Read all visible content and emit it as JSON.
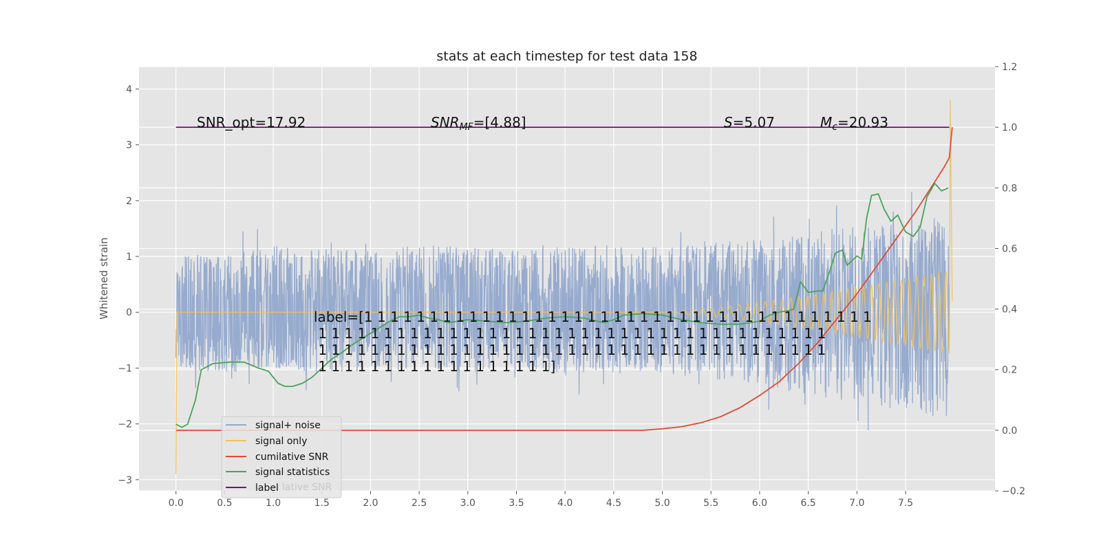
{
  "chart_data": {
    "type": "line",
    "title": "stats at each timestep for test data 158",
    "ylabel": "Whitened strain",
    "xlim": [
      -0.38,
      8.42
    ],
    "ylim": [
      -3.2,
      4.4
    ],
    "y2lim": [
      -0.2,
      1.2
    ],
    "x_ticks": [
      0.0,
      0.5,
      1.0,
      1.5,
      2.0,
      2.5,
      3.0,
      3.5,
      4.0,
      4.5,
      5.0,
      5.5,
      6.0,
      6.5,
      7.0,
      7.5
    ],
    "x_tick_labels": [
      "0.0",
      "0.5",
      "1.0",
      "1.5",
      "2.0",
      "2.5",
      "3.0",
      "3.5",
      "4.0",
      "4.5",
      "5.0",
      "5.5",
      "6.0",
      "6.5",
      "7.0",
      "7.5"
    ],
    "y_ticks": [
      4,
      3,
      2,
      1,
      0,
      -1,
      -2,
      -3
    ],
    "y_tick_labels": [
      "4",
      "3",
      "2",
      "1",
      "0",
      "−1",
      "−2",
      "−3"
    ],
    "y2_ticks": [
      1.2,
      1.0,
      0.8,
      0.6,
      0.4,
      0.2,
      0.0,
      -0.2
    ],
    "y2_tick_labels": [
      "1.2",
      "1.0",
      "0.8",
      "0.6",
      "0.4",
      "0.2",
      "0.0",
      "−0.2"
    ],
    "grid": true,
    "legend_position": "lower-left",
    "annotations": {
      "snr_opt": "SNR_opt=17.92",
      "snr_mf": "SNR",
      "snr_mf_sub": "MF",
      "snr_mf_val": "=[4.88]",
      "s_italic": "S",
      "s_val": "=5.07",
      "mc_italic": "M",
      "mc_sub": "c",
      "mc_val": "=20.93",
      "label_lines": [
        "label=[1 1 1 1 1 1 1 1 1 1 1 1 1 1 1 1 1 1 1 1 1 1 1 1 1 1 1 1 1 1 1 1 1 1 1 1 1 1 1",
        " 1 1 1 1 1 1 1 1 1 1 1 1 1 1 1 1 1 1 1 1 1 1 1 1 1 1 1 1 1 1 1 1 1 1 1 1 1 1 1",
        " 1 1 1 1 1 1 1 1 1 1 1 1 1 1 1 1 1 1 1 1 1 1 1 1 1 1 1 1 1 1 1 1 1 1 1 1 1 1 1",
        " 1 1 1 1 1 1 1 1 1 1 1 1 1 1 1 1 1 1]"
      ]
    },
    "series": [
      {
        "name": "signal+ noise",
        "axis": "left",
        "color": "#92a8cc",
        "envelope": {
          "x": [
            0.0,
            0.5,
            1.0,
            1.5,
            2.0,
            2.5,
            3.0,
            3.5,
            4.0,
            4.5,
            5.0,
            5.5,
            6.0,
            6.5,
            7.0,
            7.5,
            7.95
          ],
          "upper": [
            1.1,
            1.0,
            1.2,
            1.2,
            1.1,
            1.2,
            1.2,
            1.1,
            1.2,
            1.2,
            1.2,
            1.3,
            1.3,
            1.4,
            1.6,
            1.6,
            1.8
          ],
          "lower": [
            -1.0,
            -1.1,
            -1.0,
            -1.1,
            -1.1,
            -1.0,
            -1.1,
            -1.0,
            -1.1,
            -1.1,
            -1.1,
            -1.2,
            -1.3,
            -1.5,
            -1.6,
            -1.8,
            -1.9
          ]
        }
      },
      {
        "name": "signal only",
        "axis": "left",
        "color": "#f1c15a",
        "envelope": {
          "x": [
            0.0,
            5.0,
            5.5,
            6.0,
            6.5,
            7.0,
            7.5,
            7.95,
            7.98
          ],
          "amplitude": [
            0.0,
            0.0,
            0.08,
            0.18,
            0.3,
            0.45,
            0.6,
            0.75,
            4.0
          ]
        }
      },
      {
        "name": "cumilative SNR",
        "axis": "right",
        "color": "#e24a33",
        "x": [
          0.0,
          4.8,
          5.0,
          5.2,
          5.4,
          5.6,
          5.8,
          6.0,
          6.2,
          6.4,
          6.6,
          6.8,
          7.0,
          7.2,
          7.4,
          7.6,
          7.8,
          7.9,
          7.95,
          7.98
        ],
        "values": [
          0.0,
          0.0,
          0.005,
          0.012,
          0.025,
          0.045,
          0.075,
          0.115,
          0.16,
          0.22,
          0.29,
          0.37,
          0.45,
          0.54,
          0.63,
          0.72,
          0.82,
          0.87,
          0.9,
          1.0
        ]
      },
      {
        "name": "signal statistics",
        "axis": "right",
        "color": "#4aa25a",
        "x": [
          0.0,
          0.06,
          0.12,
          0.2,
          0.26,
          0.38,
          0.55,
          0.7,
          0.85,
          0.95,
          1.05,
          1.12,
          1.2,
          1.3,
          1.4,
          1.5,
          1.6,
          1.7,
          1.8,
          1.9,
          2.0,
          2.1,
          2.2,
          2.3,
          2.4,
          2.5,
          2.6,
          2.7,
          2.8,
          2.9,
          3.0,
          3.2,
          3.4,
          3.6,
          3.8,
          4.0,
          4.2,
          4.4,
          4.5,
          4.6,
          4.8,
          5.0,
          5.2,
          5.4,
          5.6,
          5.8,
          6.0,
          6.1,
          6.2,
          6.3,
          6.35,
          6.42,
          6.5,
          6.6,
          6.65,
          6.72,
          6.78,
          6.85,
          6.9,
          6.95,
          7.0,
          7.05,
          7.1,
          7.15,
          7.22,
          7.28,
          7.35,
          7.42,
          7.5,
          7.58,
          7.65,
          7.72,
          7.8,
          7.87,
          7.94
        ],
        "values": [
          0.02,
          0.01,
          0.02,
          0.1,
          0.2,
          0.22,
          0.225,
          0.225,
          0.205,
          0.195,
          0.155,
          0.145,
          0.145,
          0.155,
          0.175,
          0.205,
          0.235,
          0.255,
          0.28,
          0.3,
          0.32,
          0.34,
          0.36,
          0.375,
          0.375,
          0.38,
          0.37,
          0.365,
          0.355,
          0.36,
          0.365,
          0.36,
          0.355,
          0.36,
          0.37,
          0.375,
          0.37,
          0.355,
          0.365,
          0.38,
          0.385,
          0.38,
          0.365,
          0.355,
          0.35,
          0.35,
          0.36,
          0.38,
          0.39,
          0.395,
          0.4,
          0.49,
          0.455,
          0.46,
          0.46,
          0.525,
          0.585,
          0.595,
          0.545,
          0.56,
          0.575,
          0.565,
          0.7,
          0.775,
          0.78,
          0.73,
          0.69,
          0.71,
          0.655,
          0.64,
          0.67,
          0.77,
          0.815,
          0.79,
          0.8
        ]
      },
      {
        "name": "label",
        "axis": "right",
        "color": "#7a0c7a",
        "x": [
          0.0,
          7.95
        ],
        "values": [
          1.0,
          1.0
        ]
      }
    ],
    "legend_overlap_text": "lative SNR"
  }
}
